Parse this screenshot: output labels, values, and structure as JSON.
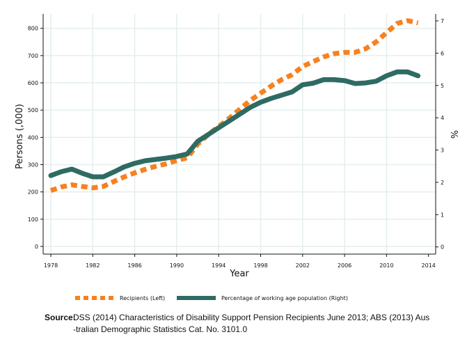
{
  "chart_data": {
    "type": "line",
    "title": "",
    "xlabel": "Year",
    "ylabel_left": "Persons (,000)",
    "ylabel_right": "%",
    "xlim": [
      1978,
      2014
    ],
    "xticks": [
      1978,
      1982,
      1986,
      1990,
      1994,
      1998,
      2002,
      2006,
      2010,
      2014
    ],
    "ylim_left": [
      0,
      800
    ],
    "yticks_left": [
      0,
      100,
      200,
      300,
      400,
      500,
      600,
      700,
      800
    ],
    "ylim_right": [
      0,
      7
    ],
    "yticks_right": [
      0,
      1,
      2,
      3,
      4,
      5,
      6,
      7
    ],
    "grid": true,
    "legend_position": "bottom",
    "x": [
      1978,
      1979,
      1980,
      1981,
      1982,
      1983,
      1984,
      1985,
      1986,
      1987,
      1988,
      1989,
      1990,
      1991,
      1992,
      1993,
      1994,
      1995,
      1996,
      1997,
      1998,
      1999,
      2000,
      2001,
      2002,
      2003,
      2004,
      2005,
      2006,
      2007,
      2008,
      2009,
      2010,
      2011,
      2012,
      2013
    ],
    "series": [
      {
        "name": "Recipients (Left)",
        "axis": "left",
        "color": "#F5821F",
        "style": "dashed",
        "values": [
          205,
          218,
          226,
          220,
          215,
          220,
          238,
          255,
          270,
          283,
          294,
          303,
          315,
          325,
          375,
          410,
          440,
          470,
          503,
          535,
          562,
          588,
          612,
          630,
          660,
          678,
          695,
          707,
          712,
          712,
          725,
          750,
          784,
          818,
          828,
          820
        ]
      },
      {
        "name": "Percentage of working age population (Right)",
        "axis": "right",
        "color": "#2E6B62",
        "style": "solid",
        "values": [
          2.21,
          2.33,
          2.41,
          2.28,
          2.17,
          2.17,
          2.32,
          2.48,
          2.59,
          2.67,
          2.71,
          2.75,
          2.8,
          2.88,
          3.27,
          3.48,
          3.69,
          3.9,
          4.11,
          4.32,
          4.48,
          4.6,
          4.7,
          4.8,
          5.02,
          5.07,
          5.18,
          5.18,
          5.15,
          5.06,
          5.08,
          5.13,
          5.3,
          5.42,
          5.42,
          5.3
        ]
      }
    ]
  },
  "source": {
    "label": "Source:",
    "text": "DSS (2014) Characteristics of Disability Support Pension Recipients June 2013; ABS (2013) Aus",
    "text2": "-tralian Demographic Statistics Cat. No. 3101.0"
  }
}
